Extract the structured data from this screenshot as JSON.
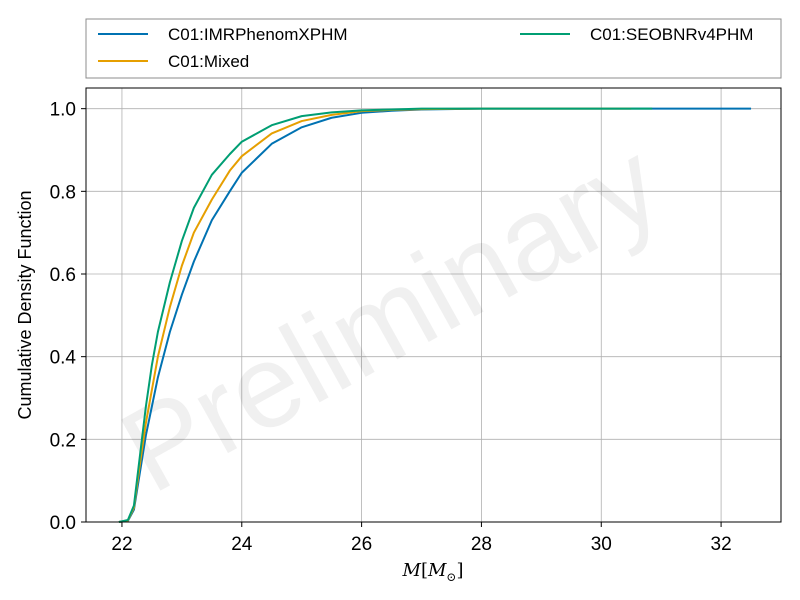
{
  "chart_data": {
    "type": "line",
    "title": "",
    "xlabel": "M[M_⊙]",
    "xlabel_parts": {
      "main": "M",
      "open": "[",
      "base": "M",
      "sub": "⊙",
      "close": "]"
    },
    "ylabel": "Cumulative Density Function",
    "xlim": [
      21.4,
      33.0
    ],
    "ylim": [
      0.0,
      1.05
    ],
    "xticks": [
      22,
      24,
      26,
      28,
      30,
      32
    ],
    "yticks": [
      0.0,
      0.2,
      0.4,
      0.6,
      0.8,
      1.0
    ],
    "xtick_labels": [
      "22",
      "24",
      "26",
      "28",
      "30",
      "32"
    ],
    "ytick_labels": [
      "0.0",
      "0.2",
      "0.4",
      "0.6",
      "0.8",
      "1.0"
    ],
    "grid": true,
    "legend_position": "top (outside, above plot)",
    "watermark": "Preliminary",
    "series": [
      {
        "name": "C01:IMRPhenomXPHM",
        "color": "#0072b2",
        "x": [
          21.95,
          22.1,
          22.2,
          22.3,
          22.4,
          22.5,
          22.6,
          22.8,
          23.0,
          23.2,
          23.5,
          23.8,
          24.0,
          24.5,
          25.0,
          25.5,
          26.0,
          26.5,
          27.0,
          28.0,
          29.0,
          30.0,
          31.0,
          32.0,
          32.5
        ],
        "y": [
          0.0,
          0.003,
          0.03,
          0.12,
          0.21,
          0.28,
          0.35,
          0.46,
          0.55,
          0.63,
          0.73,
          0.8,
          0.845,
          0.915,
          0.955,
          0.978,
          0.99,
          0.995,
          0.998,
          1.0,
          1.0,
          1.0,
          1.0,
          1.0,
          1.0
        ]
      },
      {
        "name": "C01:Mixed",
        "color": "#e69f00",
        "x": [
          21.95,
          22.1,
          22.2,
          22.3,
          22.4,
          22.5,
          22.6,
          22.8,
          23.0,
          23.2,
          23.5,
          23.8,
          24.0,
          24.5,
          25.0,
          25.5,
          26.0,
          26.5,
          27.0,
          28.0,
          29.0,
          30.0,
          30.5
        ],
        "y": [
          0.0,
          0.004,
          0.035,
          0.14,
          0.24,
          0.32,
          0.4,
          0.52,
          0.62,
          0.7,
          0.78,
          0.85,
          0.885,
          0.94,
          0.97,
          0.985,
          0.994,
          0.997,
          0.999,
          1.0,
          1.0,
          1.0,
          1.0
        ]
      },
      {
        "name": "C01:SEOBNRv4PHM",
        "color": "#009e73",
        "x": [
          21.95,
          22.1,
          22.2,
          22.3,
          22.4,
          22.5,
          22.6,
          22.8,
          23.0,
          23.2,
          23.5,
          23.8,
          24.0,
          24.5,
          25.0,
          25.5,
          26.0,
          26.5,
          27.0,
          28.0,
          29.0,
          30.0,
          30.85
        ],
        "y": [
          0.0,
          0.005,
          0.04,
          0.16,
          0.28,
          0.38,
          0.46,
          0.58,
          0.68,
          0.76,
          0.84,
          0.89,
          0.92,
          0.96,
          0.982,
          0.991,
          0.996,
          0.998,
          1.0,
          1.0,
          1.0,
          1.0,
          1.0
        ]
      }
    ]
  }
}
